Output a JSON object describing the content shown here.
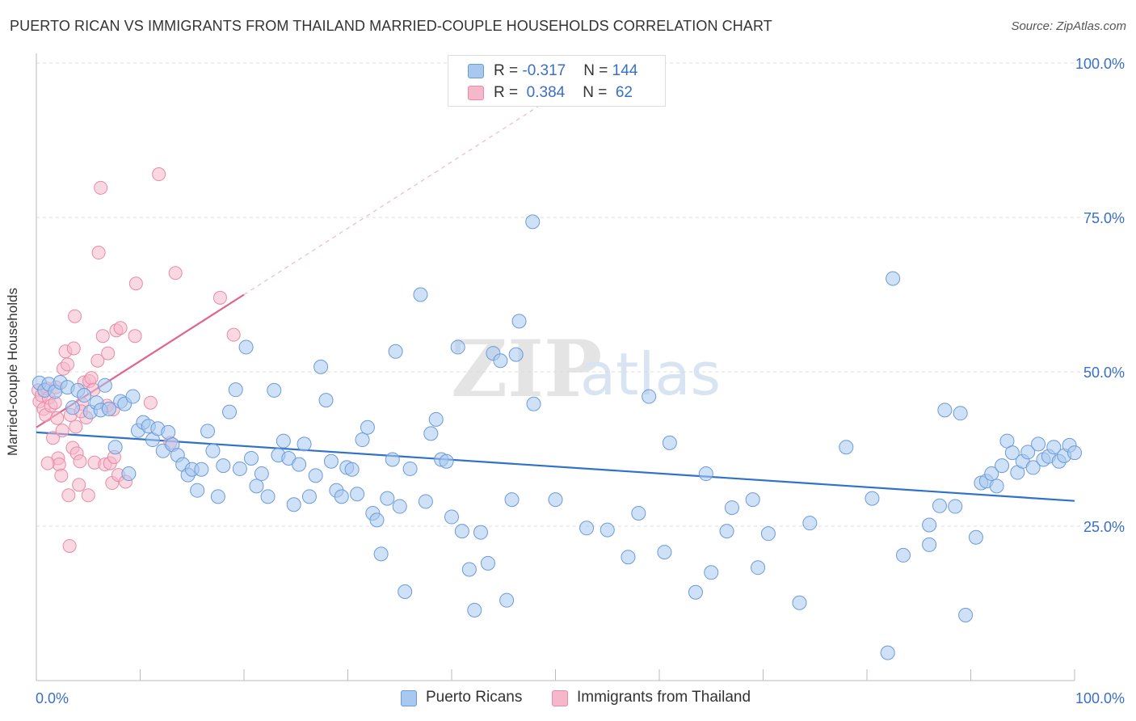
{
  "title": "PUERTO RICAN VS IMMIGRANTS FROM THAILAND MARRIED-COUPLE HOUSEHOLDS CORRELATION CHART",
  "source": "Source: ZipAtlas.com",
  "watermark": {
    "zip": "ZIP",
    "atlas": "atlas"
  },
  "colors": {
    "blue_fill": "#a8c8f0",
    "blue_stroke": "#6c9bd8",
    "blue_line": "#2f72c8",
    "pink_fill": "#f5b8cb",
    "pink_stroke": "#e88aa8",
    "pink_line": "#e0648c",
    "value_text": "#3a6fc7",
    "grid": "#dcdcdc"
  },
  "legend_top": [
    {
      "r_label": "R = ",
      "r_value": "-0.317",
      "n_label": "N = ",
      "n_value": "144",
      "swatch": "blue"
    },
    {
      "r_label": "R = ",
      "r_value": " 0.384",
      "n_label": "N = ",
      "n_value": " 62",
      "swatch": "pink"
    }
  ],
  "legend_bottom": [
    {
      "label": "Puerto Ricans",
      "swatch": "blue"
    },
    {
      "label": "Immigrants from Thailand",
      "swatch": "pink"
    }
  ],
  "chart_data": {
    "type": "scatter",
    "title": "PUERTO RICAN VS IMMIGRANTS FROM THAILAND MARRIED-COUPLE HOUSEHOLDS CORRELATION CHART",
    "xlabel": "",
    "ylabel": "Married-couple Households",
    "xlim": [
      0,
      100
    ],
    "ylim": [
      0,
      100
    ],
    "x_tick_labels": [
      "0.0%",
      "100.0%"
    ],
    "y_tick_labels": [
      "25.0%",
      "50.0%",
      "75.0%",
      "100.0%"
    ],
    "y_ticks": [
      25,
      50,
      75,
      100
    ],
    "grid": true,
    "legend_position": "top-center",
    "series": [
      {
        "name": "Puerto Ricans",
        "color": "blue",
        "trend": {
          "x": [
            0,
            100
          ],
          "y": [
            40.2,
            29.1
          ]
        },
        "points": [
          [
            0.3,
            48.2
          ],
          [
            0.8,
            47.0
          ],
          [
            1.2,
            48.0
          ],
          [
            1.8,
            46.8
          ],
          [
            2.3,
            48.3
          ],
          [
            3.0,
            47.5
          ],
          [
            3.5,
            44.2
          ],
          [
            4.0,
            47.0
          ],
          [
            4.6,
            46.2
          ],
          [
            5.2,
            43.5
          ],
          [
            5.8,
            45.0
          ],
          [
            6.2,
            43.8
          ],
          [
            6.6,
            47.8
          ],
          [
            7.0,
            44.0
          ],
          [
            7.6,
            37.8
          ],
          [
            8.1,
            45.2
          ],
          [
            8.5,
            44.8
          ],
          [
            8.9,
            33.5
          ],
          [
            9.3,
            46.0
          ],
          [
            9.8,
            40.5
          ],
          [
            10.3,
            41.8
          ],
          [
            10.8,
            41.2
          ],
          [
            11.2,
            39.0
          ],
          [
            11.7,
            40.8
          ],
          [
            12.2,
            37.2
          ],
          [
            12.7,
            40.2
          ],
          [
            13.1,
            38.2
          ],
          [
            13.6,
            36.5
          ],
          [
            14.1,
            35.0
          ],
          [
            14.6,
            33.3
          ],
          [
            15.0,
            34.2
          ],
          [
            15.5,
            30.8
          ],
          [
            15.9,
            34.2
          ],
          [
            16.5,
            40.4
          ],
          [
            17.0,
            37.2
          ],
          [
            17.5,
            29.8
          ],
          [
            18.0,
            34.8
          ],
          [
            18.6,
            43.5
          ],
          [
            19.2,
            47.1
          ],
          [
            19.6,
            34.3
          ],
          [
            20.2,
            54.0
          ],
          [
            20.7,
            36.0
          ],
          [
            21.2,
            31.5
          ],
          [
            21.7,
            33.5
          ],
          [
            22.3,
            29.8
          ],
          [
            22.9,
            47.0
          ],
          [
            23.3,
            36.5
          ],
          [
            23.8,
            38.8
          ],
          [
            24.3,
            36.0
          ],
          [
            24.8,
            28.5
          ],
          [
            25.3,
            35.0
          ],
          [
            25.8,
            38.3
          ],
          [
            26.3,
            29.8
          ],
          [
            26.9,
            33.2
          ],
          [
            27.4,
            50.8
          ],
          [
            27.9,
            45.4
          ],
          [
            28.4,
            35.5
          ],
          [
            28.9,
            30.8
          ],
          [
            29.4,
            29.8
          ],
          [
            29.9,
            34.5
          ],
          [
            30.4,
            34.2
          ],
          [
            30.9,
            30.2
          ],
          [
            31.4,
            39.0
          ],
          [
            31.9,
            41.0
          ],
          [
            32.4,
            27.1
          ],
          [
            32.8,
            26.0
          ],
          [
            33.2,
            20.5
          ],
          [
            33.8,
            29.5
          ],
          [
            34.3,
            35.8
          ],
          [
            34.6,
            53.3
          ],
          [
            35.0,
            28.2
          ],
          [
            35.5,
            14.4
          ],
          [
            36.0,
            34.3
          ],
          [
            37.0,
            62.5
          ],
          [
            37.5,
            29.0
          ],
          [
            38.0,
            40.0
          ],
          [
            38.5,
            42.3
          ],
          [
            39.0,
            35.8
          ],
          [
            39.5,
            35.5
          ],
          [
            40.0,
            26.5
          ],
          [
            40.6,
            54.0
          ],
          [
            41.0,
            24.2
          ],
          [
            41.7,
            18.0
          ],
          [
            42.2,
            11.4
          ],
          [
            42.8,
            24.0
          ],
          [
            43.5,
            19.0
          ],
          [
            44.0,
            53.0
          ],
          [
            44.7,
            51.8
          ],
          [
            45.3,
            13.0
          ],
          [
            45.8,
            29.3
          ],
          [
            46.2,
            52.8
          ],
          [
            46.5,
            58.2
          ],
          [
            47.8,
            74.3
          ],
          [
            47.9,
            44.8
          ],
          [
            50.0,
            29.3
          ],
          [
            53.0,
            24.7
          ],
          [
            55.0,
            24.4
          ],
          [
            57.0,
            20.0
          ],
          [
            58.0,
            27.1
          ],
          [
            59.0,
            46.0
          ],
          [
            60.5,
            20.8
          ],
          [
            61.0,
            38.5
          ],
          [
            63.5,
            14.3
          ],
          [
            64.5,
            33.5
          ],
          [
            65.0,
            17.5
          ],
          [
            66.5,
            24.2
          ],
          [
            67.0,
            28.0
          ],
          [
            69.0,
            29.3
          ],
          [
            69.5,
            18.3
          ],
          [
            70.5,
            23.8
          ],
          [
            73.5,
            12.6
          ],
          [
            74.5,
            25.5
          ],
          [
            78.0,
            37.8
          ],
          [
            80.5,
            29.5
          ],
          [
            82.0,
            4.5
          ],
          [
            82.5,
            65.1
          ],
          [
            83.5,
            20.3
          ],
          [
            86.0,
            22.0
          ],
          [
            86.0,
            25.2
          ],
          [
            87.0,
            28.3
          ],
          [
            87.5,
            43.8
          ],
          [
            88.5,
            28.2
          ],
          [
            89.0,
            43.3
          ],
          [
            89.5,
            10.6
          ],
          [
            90.5,
            23.2
          ],
          [
            91.0,
            32.0
          ],
          [
            91.5,
            32.3
          ],
          [
            92.0,
            33.5
          ],
          [
            92.5,
            31.5
          ],
          [
            93.0,
            34.8
          ],
          [
            93.5,
            38.8
          ],
          [
            94.0,
            36.9
          ],
          [
            94.5,
            33.7
          ],
          [
            95.0,
            35.5
          ],
          [
            95.5,
            37.0
          ],
          [
            96.0,
            34.5
          ],
          [
            96.5,
            38.3
          ],
          [
            97.0,
            35.8
          ],
          [
            97.5,
            36.3
          ],
          [
            98.0,
            37.8
          ],
          [
            98.5,
            35.5
          ],
          [
            99.0,
            36.4
          ],
          [
            99.5,
            38.1
          ],
          [
            100.0,
            36.9
          ]
        ]
      },
      {
        "name": "Immigrants from Thailand",
        "color": "pink",
        "trend": {
          "x": [
            0,
            20
          ],
          "y": [
            41.0,
            62.5
          ]
        },
        "points": [
          [
            0.2,
            47.0
          ],
          [
            0.3,
            45.2
          ],
          [
            0.5,
            46.2
          ],
          [
            0.7,
            44.0
          ],
          [
            0.9,
            43.0
          ],
          [
            1.0,
            47.3
          ],
          [
            1.2,
            45.8
          ],
          [
            1.4,
            44.5
          ],
          [
            1.6,
            39.3
          ],
          [
            1.8,
            45.0
          ],
          [
            2.0,
            42.5
          ],
          [
            2.1,
            36.0
          ],
          [
            2.2,
            35.0
          ],
          [
            2.4,
            33.2
          ],
          [
            2.6,
            50.5
          ],
          [
            2.8,
            53.3
          ],
          [
            3.0,
            51.2
          ],
          [
            3.1,
            30.0
          ],
          [
            3.3,
            43.0
          ],
          [
            3.5,
            37.7
          ],
          [
            3.6,
            53.8
          ],
          [
            3.7,
            59.0
          ],
          [
            3.9,
            36.8
          ],
          [
            4.1,
            31.7
          ],
          [
            4.2,
            35.5
          ],
          [
            4.4,
            44.8
          ],
          [
            4.6,
            48.3
          ],
          [
            4.8,
            42.6
          ],
          [
            5.0,
            30.0
          ],
          [
            5.1,
            48.5
          ],
          [
            5.3,
            49.0
          ],
          [
            5.6,
            35.3
          ],
          [
            5.9,
            51.8
          ],
          [
            6.0,
            69.3
          ],
          [
            6.2,
            79.8
          ],
          [
            6.4,
            55.8
          ],
          [
            6.6,
            35.0
          ],
          [
            6.9,
            53.0
          ],
          [
            7.1,
            35.2
          ],
          [
            7.3,
            32.0
          ],
          [
            7.5,
            36.2
          ],
          [
            7.7,
            56.7
          ],
          [
            7.9,
            33.3
          ],
          [
            8.1,
            57.1
          ],
          [
            9.5,
            55.8
          ],
          [
            9.6,
            64.3
          ],
          [
            11.0,
            45.0
          ],
          [
            11.8,
            82.0
          ],
          [
            12.9,
            38.5
          ],
          [
            13.4,
            66.0
          ],
          [
            17.7,
            62.0
          ],
          [
            19.0,
            56.0
          ],
          [
            3.2,
            21.8
          ],
          [
            2.5,
            40.5
          ],
          [
            1.9,
            47.5
          ],
          [
            4.3,
            43.6
          ],
          [
            5.5,
            47.1
          ],
          [
            6.8,
            44.5
          ],
          [
            7.4,
            43.9
          ],
          [
            8.6,
            32.2
          ],
          [
            1.1,
            35.2
          ],
          [
            3.8,
            41.1
          ]
        ]
      }
    ]
  }
}
